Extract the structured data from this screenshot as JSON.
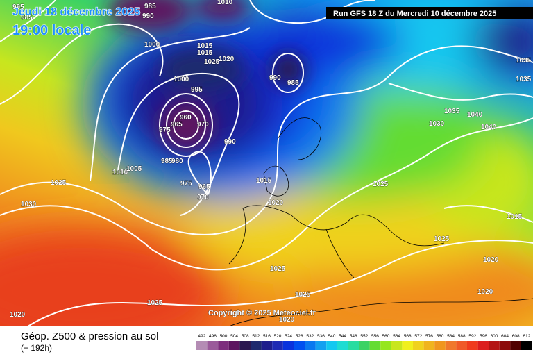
{
  "header": {
    "date": "Jeudi 18 décembre 2025",
    "time": "19:00 locale",
    "run": "Run GFS 18 Z du Mercredi 10 décembre 2025"
  },
  "map": {
    "copyright": "Copyright © 2025 Meteociel.fr",
    "isobar_labels": [
      "995",
      "985",
      "990",
      "985",
      "1010",
      "1000",
      "1015",
      "1015",
      "1020",
      "1025",
      "1000",
      "995",
      "990",
      "985",
      "960",
      "965",
      "975",
      "970",
      "990",
      "1010",
      "1005",
      "985",
      "980",
      "975",
      "965",
      "970",
      "1015",
      "1020",
      "1025",
      "1030",
      "1025",
      "1035",
      "1040",
      "1030",
      "1040",
      "1035",
      "1035",
      "1015",
      "1025",
      "1020",
      "1020",
      "1025",
      "1025",
      "1025",
      "1020",
      "1020"
    ]
  },
  "footer": {
    "title": "Géop. Z500 & pression au sol",
    "lead": "(+ 192h)"
  },
  "scale": {
    "values": [
      492,
      496,
      500,
      504,
      508,
      512,
      516,
      520,
      524,
      528,
      532,
      536,
      540,
      544,
      548,
      552,
      556,
      560,
      564,
      568,
      572,
      576,
      580,
      584,
      588,
      592,
      596,
      600,
      604,
      608,
      612
    ],
    "colors": [
      "#b48cb4",
      "#9a5a9a",
      "#7d2d7d",
      "#5d1560",
      "#2b1850",
      "#1e2a6e",
      "#1e1e8c",
      "#1e2ab4",
      "#0a32dc",
      "#0050f0",
      "#0a78f0",
      "#14a0f0",
      "#14c8f0",
      "#1edcd2",
      "#28dca0",
      "#3cd264",
      "#64dc32",
      "#96e61e",
      "#c8e61e",
      "#f0f01e",
      "#f0d21e",
      "#f0b41e",
      "#f0961e",
      "#f0782d",
      "#f05a28",
      "#f03c1e",
      "#dc1e1e",
      "#b41414",
      "#8c0a0a",
      "#500000",
      "#000000"
    ]
  }
}
